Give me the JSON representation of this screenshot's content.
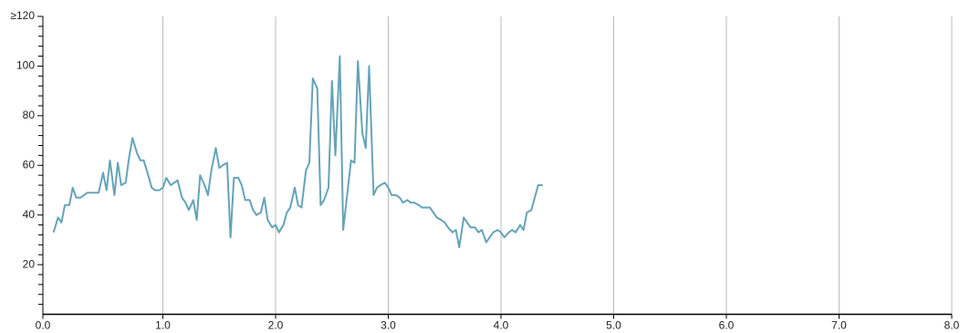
{
  "chart_data": {
    "type": "line",
    "x": [
      0.03,
      0.07,
      0.1,
      0.13,
      0.17,
      0.2,
      0.23,
      0.27,
      0.3,
      0.33,
      0.37,
      0.4,
      0.43,
      0.47,
      0.5,
      0.53,
      0.57,
      0.6,
      0.63,
      0.67,
      0.7,
      0.73,
      0.77,
      0.8,
      0.83,
      0.87,
      0.9,
      0.93,
      0.97,
      1.0,
      1.03,
      1.07,
      1.1,
      1.13,
      1.17,
      1.2,
      1.23,
      1.27,
      1.3,
      1.33,
      1.37,
      1.4,
      1.43,
      1.47,
      1.5,
      1.53,
      1.57,
      1.6,
      1.63,
      1.67,
      1.7,
      1.73,
      1.77,
      1.8,
      1.83,
      1.87,
      1.9,
      1.93,
      1.97,
      2.0,
      2.03,
      2.07,
      2.1,
      2.13,
      2.17,
      2.2,
      2.23,
      2.27,
      2.3,
      2.33,
      2.37,
      2.4,
      2.43,
      2.47,
      2.5,
      2.53,
      2.57,
      2.6,
      2.63,
      2.67,
      2.7,
      2.73,
      2.77,
      2.8,
      2.83,
      2.87,
      2.9,
      2.93,
      2.97,
      3.0,
      3.03,
      3.07,
      3.1,
      3.13,
      3.17,
      3.2,
      3.23,
      3.27,
      3.3,
      3.33,
      3.37,
      3.4,
      3.43,
      3.47,
      3.5,
      3.53,
      3.57,
      3.6,
      3.63,
      3.67,
      3.7,
      3.73,
      3.77,
      3.8,
      3.83,
      3.87,
      3.9,
      3.93,
      3.97,
      4.0,
      4.03,
      4.07,
      4.1,
      4.13,
      4.17,
      4.2,
      4.23,
      4.27,
      4.3,
      4.33,
      4.37
    ],
    "series": [
      {
        "color": "#66a3b8",
        "values": [
          33,
          39,
          37,
          44,
          44,
          51,
          47,
          47,
          48,
          49,
          49,
          49,
          49,
          57,
          50,
          62,
          48,
          61,
          52,
          53,
          63,
          71,
          65,
          62,
          62,
          56,
          51,
          50,
          50,
          51,
          55,
          52,
          53,
          54,
          47,
          45,
          42,
          46,
          38,
          56,
          52,
          48,
          58,
          67,
          59,
          60,
          61,
          31,
          55,
          55,
          52,
          46,
          46,
          42,
          40,
          41,
          47,
          38,
          35,
          36,
          33,
          36,
          41,
          43,
          51,
          44,
          43,
          58,
          61,
          95,
          91,
          44,
          46,
          51,
          94,
          64,
          104,
          34,
          46,
          62,
          61,
          102,
          73,
          67,
          100,
          48,
          51,
          52,
          53,
          51,
          48,
          48,
          47,
          45,
          46,
          45,
          45,
          44,
          43,
          43,
          43,
          41,
          39,
          38,
          37,
          35,
          33,
          34,
          27,
          39,
          37,
          35,
          35,
          33,
          34,
          29,
          31,
          33,
          34,
          33,
          31,
          33,
          34,
          33,
          36,
          34,
          41,
          42,
          47,
          52,
          52
        ]
      }
    ],
    "xlim": [
      0,
      8
    ],
    "xticks": [
      {
        "value": 0,
        "label": "0.0"
      },
      {
        "value": 1,
        "label": "1.0"
      },
      {
        "value": 2,
        "label": "2.0"
      },
      {
        "value": 3,
        "label": "3.0"
      },
      {
        "value": 4,
        "label": "4.0"
      },
      {
        "value": 5,
        "label": "5.0"
      },
      {
        "value": 6,
        "label": "6.0"
      },
      {
        "value": 7,
        "label": "7.0"
      },
      {
        "value": 8,
        "label": "8.0"
      }
    ],
    "ylim": [
      0,
      120
    ],
    "yticks": [
      20,
      40,
      60,
      80,
      100,
      {
        "value": 120,
        "label": "≥120"
      }
    ],
    "yticks_minor": [
      4,
      8,
      12,
      16,
      24,
      28,
      32,
      36,
      44,
      48,
      52,
      56,
      64,
      68,
      72,
      76,
      84,
      88,
      92,
      96,
      104,
      108,
      112,
      116
    ],
    "grid": "x"
  }
}
